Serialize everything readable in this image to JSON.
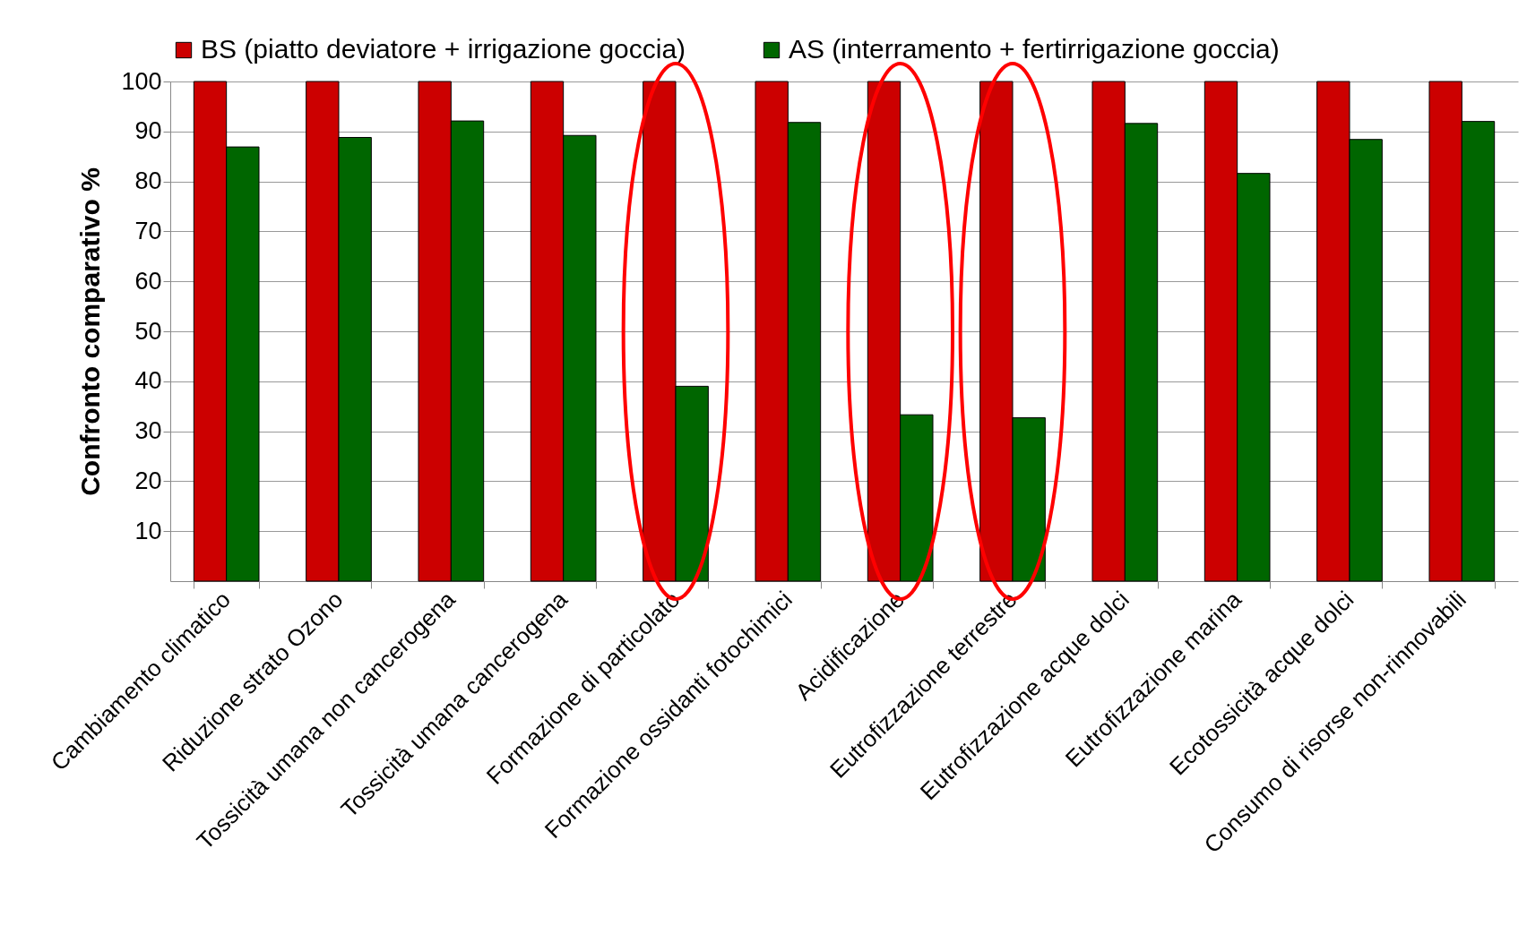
{
  "chart_data": {
    "type": "bar",
    "ylabel": "Confronto comparativo %",
    "categories": [
      "Cambiamento climatico",
      "Riduzione strato Ozono",
      "Tossicità umana non cancerogena",
      "Tossicità umana cancerogena",
      "Formazione di particolato",
      "Formazione ossidanti fotochimici",
      "Acidificazione",
      "Eutrofizzazione terrestre",
      "Eutrofizzazione acque dolci",
      "Eutrofizzazione marina",
      "Ecotossicità acque dolci",
      "Consumo di risorse non-rinnovabili"
    ],
    "series": [
      {
        "name": "BS (piatto deviatore + irrigazione goccia)",
        "color": "#cc0000",
        "values": [
          100,
          100,
          100,
          100,
          100,
          100,
          100,
          100,
          100,
          100,
          100,
          100
        ]
      },
      {
        "name": "AS (interramento + fertirrigazione goccia)",
        "color": "#006600",
        "values": [
          86.9,
          88.8,
          92.1,
          89.2,
          39.0,
          91.8,
          33.3,
          32.7,
          91.6,
          81.6,
          88.4,
          92.0
        ]
      }
    ],
    "ylim": [
      0,
      100
    ],
    "yticks": [
      10,
      20,
      30,
      40,
      50,
      60,
      70,
      80,
      90,
      100
    ],
    "grid": "y",
    "legend": "top"
  }
}
